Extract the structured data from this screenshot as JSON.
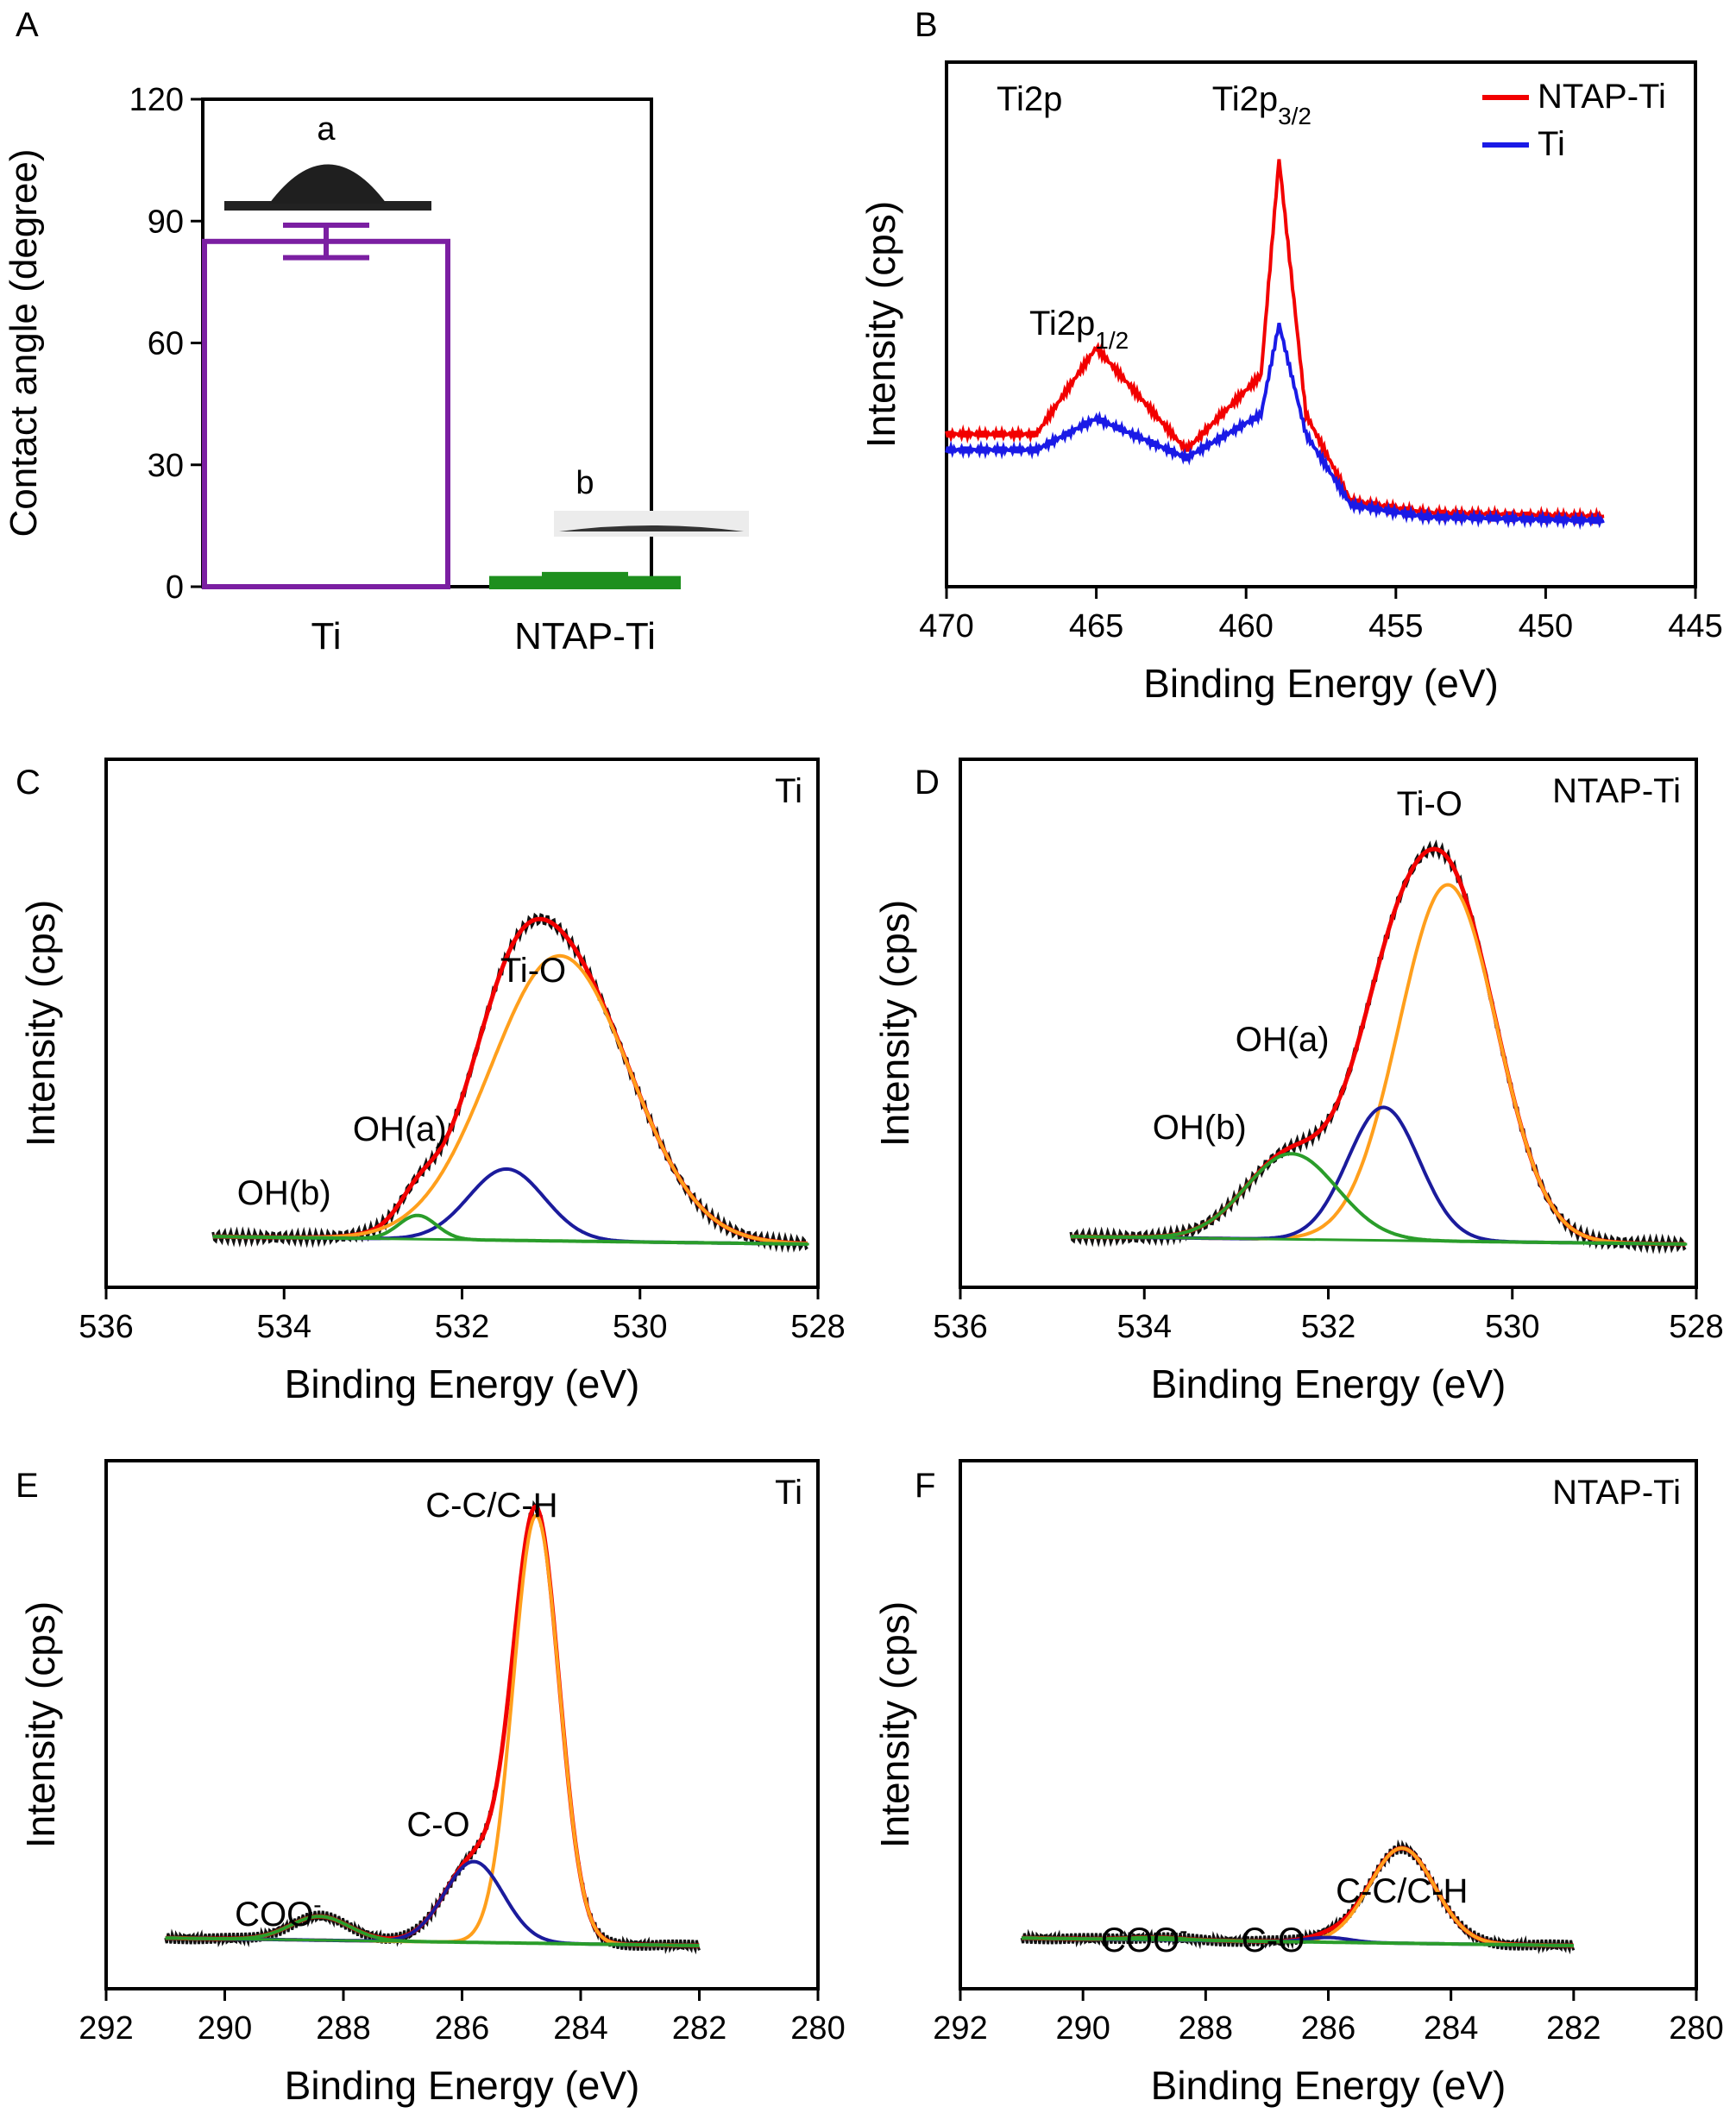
{
  "colors": {
    "purple": "#7b1fa2",
    "green": "#1e8f1e",
    "red": "#f20000",
    "blue": "#1a1ae6",
    "orange": "#ff9f1c",
    "navy": "#1b1b9c",
    "fitgreen": "#2a9d2a",
    "raw": "#111111"
  },
  "chart_data": [
    {
      "id": "A",
      "panel_label": "A",
      "type": "bar",
      "ylabel": "Contact angle (degree)",
      "xlabel": "",
      "ylim": [
        0,
        120
      ],
      "yticks": [
        "0",
        "30",
        "60",
        "90",
        "120"
      ],
      "categories": [
        "Ti",
        "NTAP-Ti"
      ],
      "values": [
        85,
        2
      ],
      "errors": [
        4,
        1
      ],
      "bar_colors": [
        "#7b1fa2",
        "#1e8f1e"
      ],
      "annotations": [
        "a",
        "b"
      ]
    },
    {
      "id": "B",
      "panel_label": "B",
      "type": "line",
      "xlabel": "Binding Energy (eV)",
      "ylabel": "Intensity (cps)",
      "xlim": [
        470,
        445
      ],
      "xticks": [
        "470",
        "465",
        "460",
        "455",
        "450",
        "445"
      ],
      "region_label": "Ti2p",
      "peak_labels": [
        {
          "base": "Ti2p",
          "sub": "1/2",
          "x": 465
        },
        {
          "base": "Ti2p",
          "sub": "3/2",
          "x": 458.9
        }
      ],
      "legend": [
        {
          "name": "NTAP-Ti",
          "color": "#f20000"
        },
        {
          "name": "Ti",
          "color": "#1a1ae6"
        }
      ],
      "series": [
        {
          "name": "NTAP-Ti",
          "color": "#f20000",
          "x": [
            470,
            467,
            465,
            462,
            459.5,
            458.9,
            458,
            456.5,
            454,
            448
          ],
          "y": [
            0.3,
            0.3,
            0.52,
            0.26,
            0.45,
            1.0,
            0.35,
            0.13,
            0.1,
            0.09
          ]
        },
        {
          "name": "Ti",
          "color": "#1a1ae6",
          "x": [
            470,
            467,
            465,
            462,
            459.5,
            458.9,
            458,
            456.5,
            454,
            448
          ],
          "y": [
            0.26,
            0.26,
            0.34,
            0.24,
            0.35,
            0.58,
            0.3,
            0.12,
            0.09,
            0.08
          ]
        }
      ]
    },
    {
      "id": "C",
      "panel_label": "C",
      "type": "line",
      "xlabel": "Binding Energy (eV)",
      "ylabel": "Intensity (cps)",
      "xlim": [
        536,
        528
      ],
      "xticks": [
        "536",
        "534",
        "532",
        "530",
        "528"
      ],
      "sample_label": "Ti",
      "peak_labels": [
        {
          "text": "Ti-O",
          "x": 531.2
        },
        {
          "text": "OH(a)",
          "x": 532.7
        },
        {
          "text": "OH(b)",
          "x": 534.0
        }
      ],
      "components": [
        {
          "name": "envelope",
          "color": "#f20000",
          "center": 531.0,
          "height": 0.67,
          "width": 1.2
        },
        {
          "name": "Ti-O",
          "color": "#ff9f1c",
          "center": 530.9,
          "height": 0.6,
          "width": 1.1
        },
        {
          "name": "OH(a)",
          "color": "#1b1b9c",
          "center": 531.5,
          "height": 0.15,
          "width": 0.6
        },
        {
          "name": "OH(b)",
          "color": "#2a9d2a",
          "center": 532.5,
          "height": 0.05,
          "width": 0.3
        }
      ]
    },
    {
      "id": "D",
      "panel_label": "D",
      "type": "line",
      "xlabel": "Binding Energy (eV)",
      "ylabel": "Intensity (cps)",
      "xlim": [
        536,
        528
      ],
      "xticks": [
        "536",
        "534",
        "532",
        "530",
        "528"
      ],
      "sample_label": "NTAP-Ti",
      "peak_labels": [
        {
          "text": "Ti-O",
          "x": 530.9
        },
        {
          "text": "OH(a)",
          "x": 532.5
        },
        {
          "text": "OH(b)",
          "x": 533.4
        }
      ],
      "components": [
        {
          "name": "envelope",
          "color": "#f20000",
          "center": 530.9,
          "height": 0.88,
          "width": 1.3
        },
        {
          "name": "Ti-O",
          "color": "#ff9f1c",
          "center": 530.7,
          "height": 0.75,
          "width": 0.75
        },
        {
          "name": "OH(a)",
          "color": "#1b1b9c",
          "center": 531.4,
          "height": 0.28,
          "width": 0.55
        },
        {
          "name": "OH(b)",
          "color": "#2a9d2a",
          "center": 532.4,
          "height": 0.18,
          "width": 0.7
        }
      ]
    },
    {
      "id": "E",
      "panel_label": "E",
      "type": "line",
      "xlabel": "Binding Energy (eV)",
      "ylabel": "Intensity (cps)",
      "xlim": [
        292,
        280
      ],
      "xticks": [
        "292",
        "290",
        "288",
        "286",
        "284",
        "282",
        "280"
      ],
      "sample_label": "Ti",
      "peak_labels": [
        {
          "text": "C-C/C-H",
          "x": 285.5
        },
        {
          "text": "C-O",
          "x": 286.4
        },
        {
          "text": "COO-",
          "x": 289.1
        }
      ],
      "components": [
        {
          "name": "envelope",
          "color": "#f20000",
          "center": 284.8,
          "height": 0.92,
          "width": 0.6
        },
        {
          "name": "C-C/C-H",
          "color": "#ff9f1c",
          "center": 284.75,
          "height": 0.9,
          "width": 0.55
        },
        {
          "name": "C-O",
          "color": "#1b1b9c",
          "center": 285.8,
          "height": 0.17,
          "width": 0.7
        },
        {
          "name": "COO-",
          "color": "#2a9d2a",
          "center": 288.4,
          "height": 0.05,
          "width": 0.7
        }
      ]
    },
    {
      "id": "F",
      "panel_label": "F",
      "type": "line",
      "xlabel": "Binding Energy (eV)",
      "ylabel": "Intensity (cps)",
      "xlim": [
        292,
        280
      ],
      "xticks": [
        "292",
        "290",
        "288",
        "286",
        "284",
        "282",
        "280"
      ],
      "sample_label": "NTAP-Ti",
      "peak_labels": [
        {
          "text": "C-C/C-H",
          "x": 284.8
        },
        {
          "text": "C-O",
          "x": 286.9
        },
        {
          "text": "COO-",
          "x": 289.0
        }
      ],
      "components": [
        {
          "name": "envelope",
          "color": "#f20000",
          "center": 284.8,
          "height": 0.2,
          "width": 0.75
        },
        {
          "name": "C-C/C-H",
          "color": "#ff9f1c",
          "center": 284.8,
          "height": 0.2,
          "width": 0.75
        },
        {
          "name": "C-O",
          "color": "#1b1b9c",
          "center": 286.0,
          "height": 0.01,
          "width": 0.5
        },
        {
          "name": "COO-",
          "color": "#2a9d2a",
          "center": 288.8,
          "height": 0.005,
          "width": 0.6
        }
      ]
    }
  ]
}
